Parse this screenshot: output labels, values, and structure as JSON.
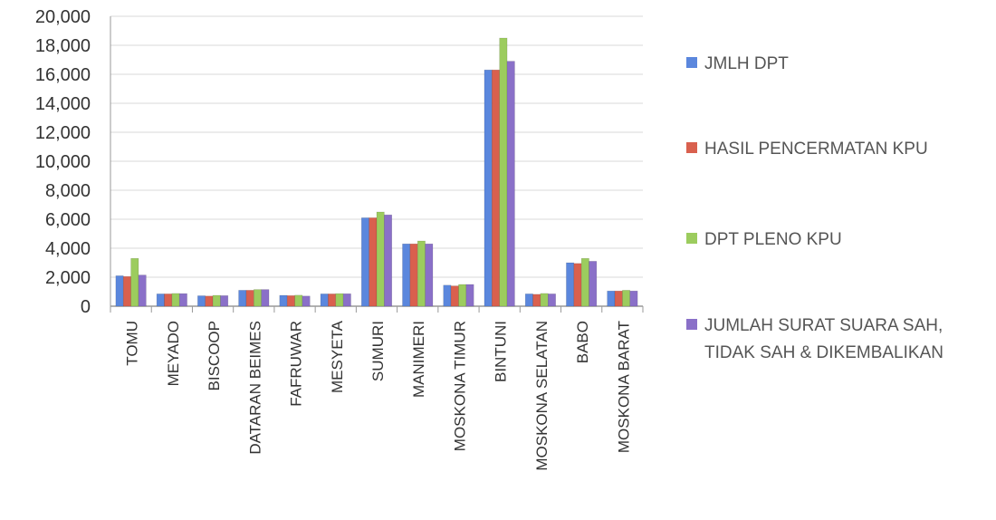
{
  "chart_data": {
    "type": "bar",
    "categories": [
      "TOMU",
      "MEYADO",
      "BISCOOP",
      "DATARAN BEIMES",
      "FAFRUWAR",
      "MESYETA",
      "SUMURI",
      "MANIMERI",
      "MOSKONA TIMUR",
      "BINTUNI",
      "MOSKONA SELATAN",
      "BABO",
      "MOSKONA BARAT"
    ],
    "series": [
      {
        "name": "JMLH DPT",
        "color": "#5b87dd",
        "values": [
          2100,
          850,
          720,
          1100,
          750,
          850,
          6100,
          4300,
          1450,
          16300,
          850,
          3000,
          1050
        ]
      },
      {
        "name": "HASIL PENCERMATAN KPU",
        "color": "#d9604e",
        "values": [
          2050,
          850,
          700,
          1100,
          730,
          850,
          6100,
          4300,
          1400,
          16300,
          820,
          2950,
          1050
        ]
      },
      {
        "name": "DPT PLENO KPU",
        "color": "#9ccc5e",
        "values": [
          3300,
          880,
          750,
          1150,
          760,
          870,
          6500,
          4500,
          1500,
          18500,
          880,
          3300,
          1100
        ]
      },
      {
        "name": "JUMLAH SURAT SUARA SAH, TIDAK SAH & DIKEMBALIKAN",
        "color": "#8a70c8",
        "values": [
          2150,
          870,
          730,
          1150,
          700,
          860,
          6300,
          4300,
          1500,
          16900,
          850,
          3100,
          1050
        ]
      }
    ],
    "ylim": [
      0,
      20000
    ],
    "yticks": [
      "0",
      "2,000",
      "4,000",
      "6,000",
      "8,000",
      "10,000",
      "12,000",
      "14,000",
      "16,000",
      "18,000",
      "20,000"
    ],
    "grid": true,
    "legend_position": "right",
    "colors": {
      "axis": "#999999",
      "grid": "#d9d9d9",
      "text": "#333333"
    }
  }
}
